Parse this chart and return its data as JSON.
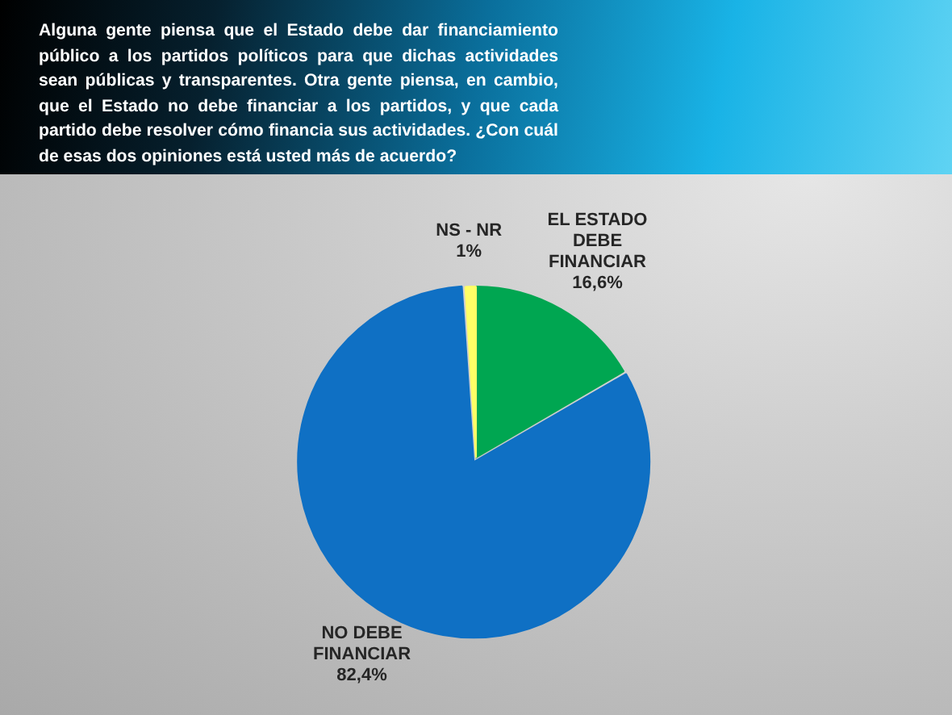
{
  "chart_data": {
    "type": "pie",
    "title": "Alguna gente piensa que el Estado debe dar financiamiento público a los partidos políticos para que dichas actividades sean públicas y transparentes. Otra gente piensa, en cambio, que el Estado no debe financiar a los partidos, y que cada partido debe resolver cómo financia sus actividades. ¿Con cuál de esas dos opiniones está usted más de acuerdo?",
    "categories": [
      "EL ESTADO DEBE FINANCIAR",
      "NO DEBE FINANCIAR",
      "NS - NR"
    ],
    "values": [
      16.6,
      82.4,
      1
    ],
    "colors": [
      "#00a651",
      "#0f70c4",
      "#ffff66"
    ],
    "value_labels": [
      "16,6%",
      "82,4%",
      "1%"
    ]
  }
}
